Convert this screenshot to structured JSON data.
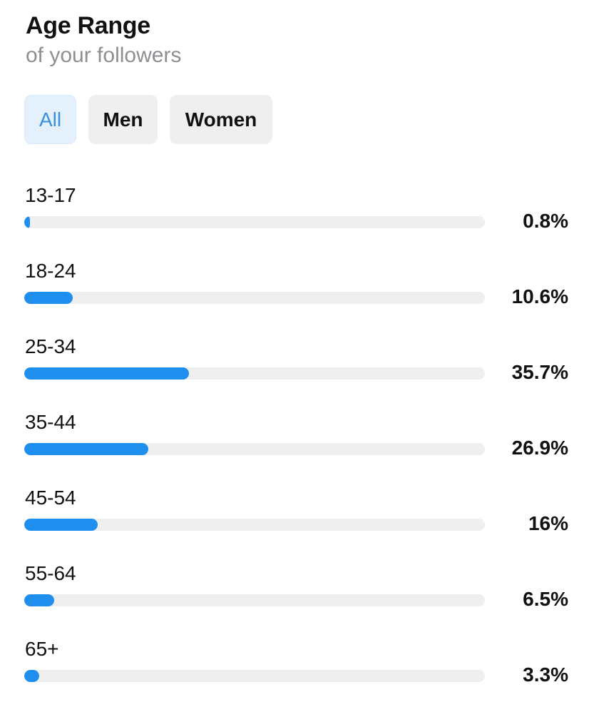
{
  "header": {
    "title": "Age Range",
    "subtitle": "of your followers"
  },
  "filters": [
    {
      "label": "All",
      "active": true
    },
    {
      "label": "Men",
      "active": false
    },
    {
      "label": "Women",
      "active": false
    }
  ],
  "colors": {
    "bar_fill": "#1e8fef",
    "track": "#efefef",
    "active_filter_bg": "#e4f1fd",
    "active_filter_text": "#3a8fd9"
  },
  "chart_data": {
    "type": "bar",
    "orientation": "horizontal",
    "title": "Age Range",
    "subtitle": "of your followers",
    "categories": [
      "13-17",
      "18-24",
      "25-34",
      "35-44",
      "45-54",
      "55-64",
      "65+"
    ],
    "values": [
      0.8,
      10.6,
      35.7,
      26.9,
      16,
      6.5,
      3.3
    ],
    "value_labels": [
      "0.8%",
      "10.6%",
      "35.7%",
      "26.9%",
      "16%",
      "6.5%",
      "3.3%"
    ],
    "unit": "%",
    "xlim": [
      0,
      100
    ],
    "grid": false,
    "legend": "none"
  }
}
